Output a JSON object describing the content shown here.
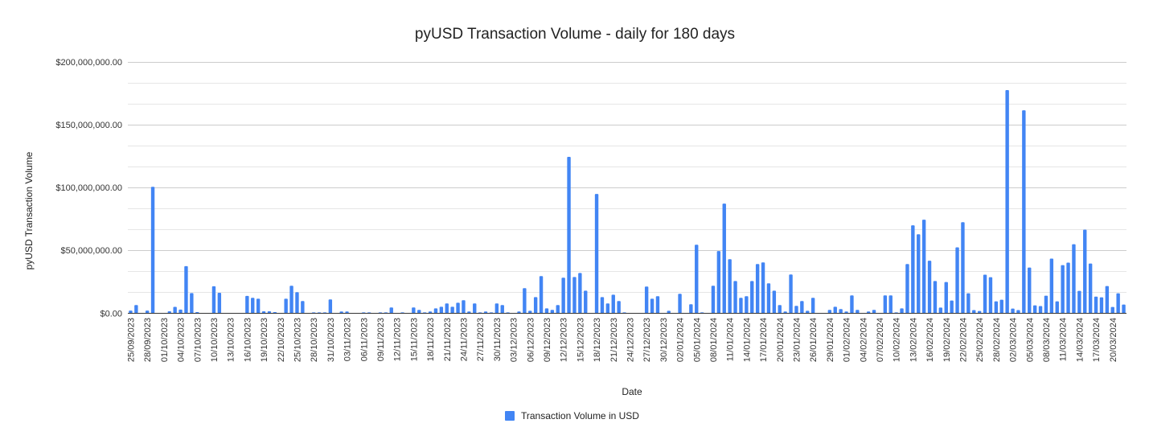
{
  "chart_data": {
    "type": "bar",
    "title": "pyUSD Transaction Volume - daily for 180 days",
    "xlabel": "Date",
    "ylabel": "pyUSD Transaction Volume",
    "ylim": [
      0,
      200000000
    ],
    "y_ticks": [
      0,
      50000000,
      100000000,
      150000000,
      200000000
    ],
    "y_tick_labels": [
      "$0.00",
      "$50,000,000.00",
      "$100,000,000.00",
      "$150,000,000.00",
      "$200,000,000.00"
    ],
    "grid": true,
    "legend_position": "bottom",
    "x_tick_every_days": 3,
    "x_tick_labels": [
      "25/09/2023",
      "28/09/2023",
      "01/10/2023",
      "04/10/2023",
      "07/10/2023",
      "10/10/2023",
      "13/10/2023",
      "16/10/2023",
      "19/10/2023",
      "22/10/2023",
      "25/10/2023",
      "28/10/2023",
      "31/10/2023",
      "03/11/2023",
      "06/11/2023",
      "09/11/2023",
      "12/11/2023",
      "15/11/2023",
      "18/11/2023",
      "21/11/2023",
      "24/11/2023",
      "27/11/2023",
      "30/11/2023",
      "03/12/2023",
      "06/12/2023",
      "09/12/2023",
      "12/12/2023",
      "15/12/2023",
      "18/12/2023",
      "21/12/2023",
      "24/12/2023",
      "27/12/2023",
      "30/12/2023",
      "02/01/2024",
      "05/01/2024",
      "08/01/2024",
      "11/01/2024",
      "14/01/2024",
      "17/01/2024",
      "20/01/2024",
      "23/01/2024",
      "26/01/2024",
      "29/01/2024",
      "01/02/2024",
      "04/02/2024",
      "07/02/2024",
      "10/02/2024",
      "13/02/2024",
      "16/02/2024",
      "19/02/2024",
      "22/02/2024",
      "25/02/2024",
      "28/02/2024",
      "02/03/2024",
      "05/03/2024",
      "08/03/2024",
      "11/03/2024",
      "14/03/2024",
      "17/03/2024",
      "20/03/2024"
    ],
    "series": [
      {
        "name": "Transaction Volume in USD",
        "color": "#4285f4",
        "values_millions": [
          2,
          6.4,
          0,
          2,
          100.6,
          0,
          0,
          1.5,
          5,
          2.8,
          37.4,
          16,
          0.8,
          0,
          0,
          21.4,
          16.2,
          0,
          0,
          0,
          0,
          13.7,
          12.2,
          11.5,
          1.5,
          1.5,
          0.8,
          0,
          11.5,
          21.8,
          16.7,
          9.6,
          0,
          0.6,
          0.6,
          0.6,
          10.9,
          0,
          1.3,
          1.3,
          0,
          0,
          0.6,
          0.6,
          0,
          0.6,
          0.6,
          4.5,
          0,
          0.6,
          0,
          4.5,
          2.6,
          0.6,
          1.3,
          3.8,
          5.1,
          7.7,
          5.1,
          8.3,
          10.3,
          1.3,
          7.7,
          0.6,
          1.3,
          0.6,
          7.7,
          6.4,
          0.6,
          0,
          1.3,
          19.9,
          1.9,
          12.8,
          29.5,
          3.8,
          2.6,
          6.4,
          28.2,
          124.4,
          28.8,
          32,
          17.9,
          0,
          94.9,
          12.8,
          7.7,
          14.7,
          9.6,
          0.6,
          0,
          0,
          0,
          21.2,
          11.5,
          13.5,
          0,
          1.9,
          0,
          15.4,
          0,
          7.1,
          54.5,
          0.6,
          0,
          21.8,
          49.4,
          87.2,
          42.9,
          25.6,
          12.2,
          13.5,
          25.6,
          39.1,
          40.4,
          23.7,
          17.9,
          6.4,
          1.3,
          30.8,
          5.8,
          9.6,
          1.9,
          12.2,
          0,
          0,
          2.6,
          5.1,
          3.2,
          1.3,
          14.1,
          2.6,
          0,
          1.3,
          2.6,
          0,
          14.1,
          14.1,
          0.6,
          3.8,
          39.1,
          69.9,
          62.8,
          74.4,
          41.7,
          25.6,
          4.4,
          24.8,
          10,
          52.4,
          72.4,
          15.8,
          2.4,
          1.7,
          30.6,
          28.6,
          9.4,
          10.7,
          177.6,
          3.6,
          2.4,
          161.5,
          36.3,
          6.2,
          5.6,
          13.9,
          43.4,
          9.4,
          38.2,
          40.2,
          54.9,
          17.7,
          66.5,
          39.5,
          13.2,
          12.6,
          21.6,
          4.9,
          15.8,
          6.8
        ]
      }
    ]
  }
}
